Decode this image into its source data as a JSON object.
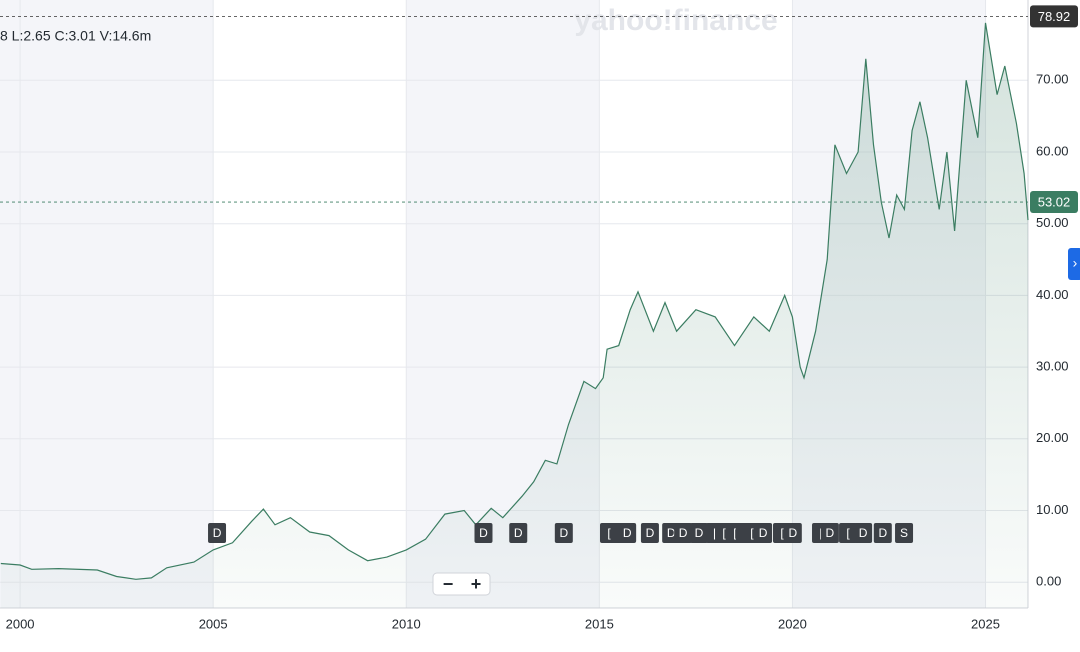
{
  "chart_data": {
    "type": "line",
    "ohlc_text": "8  L:2.65  C:3.01  V:14.6m",
    "watermark": "yahoo!finance",
    "x": [
      1999.5,
      2000,
      2000.3,
      2001,
      2002,
      2002.5,
      2003,
      2003.4,
      2003.8,
      2004.5,
      2005,
      2005.5,
      2006,
      2006.3,
      2006.6,
      2007,
      2007.5,
      2008,
      2008.5,
      2009,
      2009.5,
      2010,
      2010.5,
      2011,
      2011.5,
      2011.8,
      2012.2,
      2012.5,
      2013,
      2013.3,
      2013.6,
      2013.9,
      2014.2,
      2014.6,
      2014.9,
      2015.1,
      2015.2,
      2015.5,
      2015.8,
      2016.0,
      2016.4,
      2016.7,
      2017,
      2017.5,
      2018,
      2018.5,
      2019,
      2019.4,
      2019.8,
      2020,
      2020.2,
      2020.3,
      2020.6,
      2020.9,
      2021.1,
      2021.4,
      2021.7,
      2021.9,
      2022.1,
      2022.3,
      2022.5,
      2022.7,
      2022.9,
      2023.1,
      2023.3,
      2023.5,
      2023.8,
      2024.0,
      2024.2,
      2024.5,
      2024.8,
      2025.0,
      2025.3,
      2025.5,
      2025.8,
      2026.0,
      2026.1
    ],
    "series": [
      {
        "color": "#3b7d62",
        "values": [
          2.6,
          2.4,
          1.8,
          1.9,
          1.7,
          0.8,
          0.4,
          0.6,
          2.0,
          2.8,
          4.5,
          5.5,
          8.5,
          10.2,
          8.0,
          9.0,
          7.0,
          6.5,
          4.5,
          3.0,
          3.5,
          4.5,
          6.0,
          9.5,
          10.0,
          8.0,
          10.3,
          9.0,
          12,
          14,
          17,
          16.5,
          22,
          28,
          27,
          28.5,
          32.5,
          33,
          38,
          40.5,
          35,
          39,
          35,
          38,
          37,
          33,
          37,
          35,
          40,
          37,
          30,
          28.5,
          35,
          45,
          61,
          57,
          60,
          73,
          61,
          53,
          48,
          54,
          52,
          63,
          67,
          62,
          52,
          60,
          49,
          70,
          62,
          78,
          68,
          72,
          64,
          57,
          50.5
        ]
      }
    ],
    "xlim": [
      1999.48,
      2026.1
    ],
    "xticks": [
      2000,
      2005,
      2010,
      2015,
      2020,
      2025
    ],
    "ylim": [
      -3.6,
      81.2
    ],
    "yticks": [
      {
        "value": 0,
        "label": "0.00"
      },
      {
        "value": 10,
        "label": "10.00"
      },
      {
        "value": 20,
        "label": "20.00"
      },
      {
        "value": 30,
        "label": "30.00"
      },
      {
        "value": 40,
        "label": "40.00"
      },
      {
        "value": 50,
        "label": "50.00"
      },
      {
        "value": 60,
        "label": "60.00"
      },
      {
        "value": 70,
        "label": "70.00"
      }
    ],
    "reference_lines": [
      {
        "value": 78.92,
        "label": "78.92",
        "color": "#333333"
      },
      {
        "value": 53.02,
        "label": "53.02",
        "color": "#3b7d62"
      }
    ],
    "events": [
      {
        "x": 2005.1,
        "label": "D"
      },
      {
        "x": 2012.0,
        "label": "D"
      },
      {
        "x": 2012.9,
        "label": "D"
      },
      {
        "x": 2014.08,
        "label": "D"
      },
      {
        "x": 2015.25,
        "label": "["
      },
      {
        "x": 2015.53,
        "label": "["
      },
      {
        "x": 2015.72,
        "label": "D"
      },
      {
        "x": 2016.31,
        "label": "D"
      },
      {
        "x": 2016.86,
        "label": "D"
      },
      {
        "x": 2017.17,
        "label": "D"
      },
      {
        "x": 2017.58,
        "label": "D"
      },
      {
        "x": 2017.99,
        "label": "["
      },
      {
        "x": 2018.23,
        "label": "["
      },
      {
        "x": 2018.51,
        "label": "["
      },
      {
        "x": 2018.77,
        "label": "["
      },
      {
        "x": 2018.95,
        "label": "["
      },
      {
        "x": 2019.24,
        "label": "D"
      },
      {
        "x": 2019.73,
        "label": "["
      },
      {
        "x": 2020.01,
        "label": "D"
      },
      {
        "x": 2020.74,
        "label": "["
      },
      {
        "x": 2020.97,
        "label": "D"
      },
      {
        "x": 2021.44,
        "label": "["
      },
      {
        "x": 2021.83,
        "label": "D"
      },
      {
        "x": 2022.34,
        "label": "D"
      },
      {
        "x": 2022.89,
        "label": "S"
      }
    ],
    "zoom_controls": [
      "−",
      "+"
    ],
    "expand_icon": "›"
  }
}
